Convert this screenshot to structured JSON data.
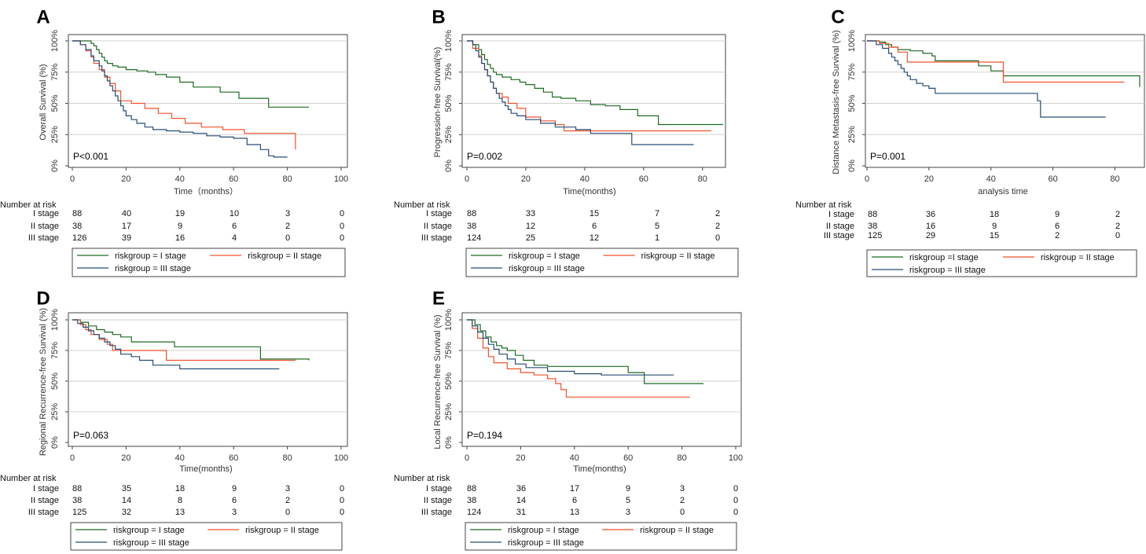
{
  "figure": {
    "background": "#ffffff"
  },
  "colors": {
    "I": "#1d6b22",
    "II": "#f0522b",
    "III": "#264d75",
    "grid": "#d0d0d0",
    "axis": "#444444"
  },
  "chart_data": [
    {
      "panel": "A",
      "type": "line",
      "ylabel": "Overall Survival (%)",
      "xlabel": "Time（months）",
      "xlim": [
        0,
        100
      ],
      "ylim": [
        0,
        100
      ],
      "xticks": [
        "0",
        "20",
        "40",
        "60",
        "80",
        "100"
      ],
      "yticks": [
        "0%",
        "25%",
        "50%",
        "75%",
        "100%"
      ],
      "pvalue": "P<0.001",
      "series": [
        {
          "name": "I stage",
          "color": "#1d6b22",
          "x": [
            0,
            5,
            7,
            8,
            9,
            10,
            11,
            12,
            13,
            15,
            17,
            20,
            24,
            28,
            31,
            35,
            40,
            45,
            51,
            55,
            62,
            73,
            88
          ],
          "y": [
            100,
            100,
            98,
            96,
            93,
            90,
            87,
            84,
            82,
            80,
            79,
            77,
            76,
            75,
            73,
            71,
            67,
            63,
            63,
            59,
            54,
            47,
            47
          ]
        },
        {
          "name": "II stage",
          "color": "#f0522b",
          "x": [
            0,
            3,
            5,
            7,
            8,
            10,
            12,
            14,
            16,
            18,
            22,
            27,
            32,
            37,
            42,
            48,
            56,
            64,
            70,
            75,
            82,
            83
          ],
          "y": [
            100,
            97,
            92,
            87,
            82,
            77,
            71,
            66,
            60,
            52,
            50,
            46,
            42,
            38,
            34,
            31,
            29,
            26,
            26,
            26,
            26,
            13
          ]
        },
        {
          "name": "III stage",
          "color": "#264d75",
          "x": [
            0,
            3,
            5,
            7,
            8,
            10,
            11,
            12,
            13,
            14,
            15,
            16,
            17,
            18,
            19,
            20,
            22,
            24,
            27,
            30,
            35,
            40,
            45,
            50,
            55,
            60,
            65,
            70,
            73,
            75,
            80
          ],
          "y": [
            100,
            97,
            93,
            88,
            84,
            80,
            76,
            72,
            68,
            64,
            60,
            56,
            52,
            48,
            44,
            40,
            37,
            34,
            31,
            29,
            28,
            27,
            26,
            24,
            23,
            22,
            17,
            13,
            8,
            7,
            7
          ]
        }
      ],
      "risk_table": {
        "title": "Number at risk",
        "rows": [
          {
            "label": "I stage",
            "values": [
              "88",
              "40",
              "19",
              "10",
              "3",
              "0"
            ]
          },
          {
            "label": "II stage",
            "values": [
              "38",
              "17",
              "9",
              "6",
              "2",
              "0"
            ]
          },
          {
            "label": "III stage",
            "values": [
              "126",
              "39",
              "16",
              "4",
              "0",
              "0"
            ]
          }
        ]
      },
      "legend": [
        "riskgroup = I stage",
        "riskgroup = II stage",
        "riskgroup = III stage"
      ]
    },
    {
      "panel": "B",
      "type": "line",
      "ylabel": "Progression-free Survival(%)",
      "xlabel": "Time(months)",
      "xlim": [
        0,
        87
      ],
      "ylim": [
        0,
        100
      ],
      "xticks": [
        "0",
        "20",
        "40",
        "60",
        "80"
      ],
      "xtickvals": [
        0,
        20,
        40,
        60,
        80
      ],
      "yticks": [
        "0%",
        "25%",
        "50%",
        "75%",
        "100%"
      ],
      "pvalue": "P=0.002",
      "series": [
        {
          "name": "I stage",
          "color": "#1d6b22",
          "x": [
            0,
            2,
            4,
            5,
            6,
            7,
            8,
            9,
            10,
            12,
            15,
            18,
            20,
            23,
            26,
            29,
            32,
            37,
            42,
            47,
            52,
            58,
            65,
            73,
            87
          ],
          "y": [
            100,
            97,
            93,
            89,
            85,
            81,
            78,
            75,
            73,
            71,
            69,
            67,
            65,
            62,
            59,
            55,
            54,
            52,
            49,
            48,
            45,
            40,
            33,
            33,
            33
          ]
        },
        {
          "name": "II stage",
          "color": "#f0522b",
          "x": [
            0,
            2,
            4,
            5,
            6,
            7,
            8,
            9,
            10,
            12,
            14,
            17,
            20,
            25,
            30,
            33,
            35,
            40,
            50,
            60,
            70,
            80,
            83
          ],
          "y": [
            100,
            94,
            88,
            82,
            77,
            72,
            67,
            62,
            58,
            55,
            50,
            46,
            39,
            36,
            33,
            28,
            28,
            28,
            28,
            28,
            28,
            28,
            28
          ]
        },
        {
          "name": "III stage",
          "color": "#264d75",
          "x": [
            0,
            2,
            3,
            4,
            5,
            6,
            7,
            8,
            9,
            10,
            11,
            12,
            13,
            14,
            15,
            17,
            20,
            25,
            30,
            37,
            42,
            50,
            55,
            56,
            60,
            70,
            77
          ],
          "y": [
            100,
            97,
            92,
            87,
            82,
            77,
            72,
            67,
            62,
            58,
            54,
            51,
            48,
            45,
            42,
            40,
            37,
            34,
            31,
            29,
            26,
            26,
            26,
            17,
            17,
            17,
            17
          ]
        }
      ],
      "risk_table": {
        "title": "Number at risk",
        "rows": [
          {
            "label": "I stage",
            "values": [
              "88",
              "33",
              "15",
              "7",
              "2"
            ]
          },
          {
            "label": "II stage",
            "values": [
              "38",
              "12",
              "6",
              "5",
              "2"
            ]
          },
          {
            "label": "III stage",
            "values": [
              "124",
              "25",
              "12",
              "1",
              "0"
            ]
          }
        ]
      },
      "legend": [
        "riskgroup = I stage",
        "riskgroup = II stage",
        "riskgroup = III stage"
      ]
    },
    {
      "panel": "C",
      "type": "line",
      "ylabel": "Distance Metastasis-free Survival (%)",
      "xlabel": "analysis time",
      "xlim": [
        0,
        88
      ],
      "ylim": [
        0,
        100
      ],
      "xticks": [
        "0",
        "20",
        "40",
        "60",
        "80"
      ],
      "xtickvals": [
        0,
        20,
        40,
        60,
        80
      ],
      "yticks": [
        "0%",
        "25%",
        "50%",
        "75%",
        "100%"
      ],
      "pvalue": "P=0.001",
      "series": [
        {
          "name": "I stage",
          "color": "#1d6b22",
          "x": [
            0,
            4,
            6,
            8,
            10,
            14,
            18,
            21,
            22,
            34,
            36,
            40,
            44,
            69,
            88
          ],
          "y": [
            100,
            99,
            97,
            95,
            93,
            92,
            90,
            88,
            84,
            84,
            80,
            76,
            72,
            72,
            63
          ]
        },
        {
          "name": "II stage",
          "color": "#f0522b",
          "x": [
            0,
            4,
            7,
            10,
            13,
            20,
            30,
            43,
            44,
            60,
            70,
            83
          ],
          "y": [
            100,
            98,
            95,
            91,
            83,
            83,
            83,
            83,
            67,
            67,
            67,
            67
          ]
        },
        {
          "name": "III stage",
          "color": "#264d75",
          "x": [
            0,
            3,
            5,
            7,
            8,
            9,
            10,
            11,
            12,
            13,
            14,
            16,
            18,
            20,
            22,
            30,
            40,
            50,
            55,
            56,
            60,
            70,
            77
          ],
          "y": [
            100,
            97,
            94,
            90,
            87,
            84,
            81,
            78,
            75,
            72,
            69,
            66,
            64,
            62,
            58,
            58,
            58,
            58,
            52,
            39,
            39,
            39,
            39
          ]
        }
      ],
      "risk_table": {
        "title": "Number at risk",
        "rows": [
          {
            "label": "I stage",
            "values": [
              "88",
              "36",
              "18",
              "9",
              "2"
            ]
          },
          {
            "label": "II stage",
            "values": [
              "38",
              "16",
              "9",
              "6",
              "2"
            ]
          },
          {
            "label": "III stage",
            "values": [
              "125",
              "29",
              "15",
              "2",
              "0"
            ]
          }
        ]
      },
      "legend": [
        "riskgroup =I stage",
        "riskgroup = II stage",
        "riskgroup = III stage"
      ]
    },
    {
      "panel": "D",
      "type": "line",
      "ylabel": "Regional Recurrence-free Survival (%)",
      "xlabel": "Time(months)",
      "xlim": [
        0,
        100
      ],
      "ylim": [
        0,
        100
      ],
      "xticks": [
        "0",
        "20",
        "40",
        "60",
        "80",
        "100"
      ],
      "yticks": [
        "0%",
        "25%",
        "50%",
        "75%",
        "100%"
      ],
      "pvalue": "P=0.063",
      "series": [
        {
          "name": "I stage",
          "color": "#1d6b22",
          "x": [
            0,
            3,
            6,
            9,
            12,
            15,
            18,
            22,
            30,
            38,
            50,
            69,
            70,
            88
          ],
          "y": [
            100,
            98,
            95,
            92,
            90,
            88,
            86,
            82,
            82,
            78,
            78,
            78,
            68,
            67
          ]
        },
        {
          "name": "II stage",
          "color": "#f0522b",
          "x": [
            0,
            3,
            5,
            7,
            10,
            13,
            15,
            20,
            33,
            35,
            45,
            60,
            83
          ],
          "y": [
            100,
            96,
            92,
            88,
            84,
            80,
            75,
            75,
            75,
            67,
            67,
            67,
            67
          ]
        },
        {
          "name": "III stage",
          "color": "#264d75",
          "x": [
            0,
            2,
            4,
            6,
            8,
            10,
            12,
            14,
            16,
            18,
            22,
            25,
            30,
            40,
            50,
            60,
            77
          ],
          "y": [
            100,
            97,
            94,
            91,
            88,
            85,
            82,
            79,
            76,
            72,
            70,
            67,
            63,
            60,
            60,
            60,
            60
          ]
        }
      ],
      "risk_table": {
        "title": "Number at risk",
        "rows": [
          {
            "label": "I stage",
            "values": [
              "88",
              "35",
              "18",
              "9",
              "3",
              "0"
            ]
          },
          {
            "label": "II stage",
            "values": [
              "38",
              "14",
              "8",
              "6",
              "2",
              "0"
            ]
          },
          {
            "label": "III stage",
            "values": [
              "125",
              "32",
              "13",
              "3",
              "0",
              "0"
            ]
          }
        ]
      },
      "legend": [
        "riskgroup = I stage",
        "riskgroup = II stage",
        "riskgroup = III stage"
      ]
    },
    {
      "panel": "E",
      "type": "line",
      "ylabel": "Local Recurrence-free Survival (%)",
      "xlabel": "Time(months)",
      "xlim": [
        0,
        100
      ],
      "ylim": [
        0,
        100
      ],
      "xticks": [
        "0",
        "20",
        "40",
        "60",
        "80",
        "100"
      ],
      "yticks": [
        "0%",
        "25%",
        "50%",
        "75%",
        "100%"
      ],
      "pvalue": "P=0.194",
      "series": [
        {
          "name": "I stage",
          "color": "#1d6b22",
          "x": [
            0,
            3,
            5,
            7,
            9,
            11,
            13,
            15,
            18,
            21,
            25,
            30,
            40,
            50,
            60,
            66,
            70,
            88
          ],
          "y": [
            100,
            96,
            91,
            86,
            82,
            79,
            77,
            75,
            71,
            67,
            63,
            62,
            62,
            62,
            57,
            48,
            48,
            48
          ]
        },
        {
          "name": "II stage",
          "color": "#f0522b",
          "x": [
            0,
            2,
            4,
            6,
            8,
            10,
            15,
            20,
            25,
            30,
            33,
            35,
            37,
            40,
            50,
            60,
            83
          ],
          "y": [
            100,
            93,
            85,
            77,
            70,
            65,
            60,
            57,
            55,
            52,
            48,
            43,
            37,
            37,
            37,
            37,
            37
          ]
        },
        {
          "name": "III stage",
          "color": "#264d75",
          "x": [
            0,
            2,
            4,
            6,
            8,
            10,
            12,
            15,
            18,
            22,
            30,
            40,
            50,
            60,
            65,
            70,
            77
          ],
          "y": [
            100,
            95,
            90,
            85,
            80,
            76,
            72,
            68,
            64,
            61,
            58,
            56,
            55,
            55,
            55,
            55,
            55
          ]
        }
      ],
      "risk_table": {
        "title": "Number at risk",
        "rows": [
          {
            "label": "I stage",
            "values": [
              "88",
              "36",
              "17",
              "9",
              "3",
              "0"
            ]
          },
          {
            "label": "II stage",
            "values": [
              "38",
              "14",
              "6",
              "5",
              "2",
              "0"
            ]
          },
          {
            "label": "III stage",
            "values": [
              "124",
              "31",
              "13",
              "3",
              "0",
              "0"
            ]
          }
        ]
      },
      "legend": [
        "riskgroup = I stage",
        "riskgroup = II stage",
        "riskgroup = III stage"
      ]
    }
  ]
}
